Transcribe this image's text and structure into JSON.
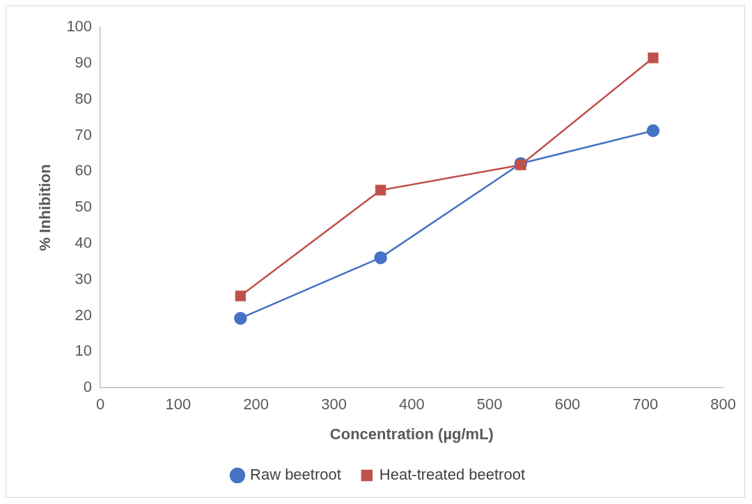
{
  "chart_data": {
    "type": "line",
    "xlabel": "Concentration (µg/mL)",
    "ylabel": "% Inhibition",
    "xlim": [
      0,
      800
    ],
    "xticks": [
      0,
      100,
      200,
      300,
      400,
      500,
      600,
      700,
      800
    ],
    "ylim": [
      0,
      100
    ],
    "yticks": [
      0,
      10,
      20,
      30,
      40,
      50,
      60,
      70,
      80,
      90,
      100
    ],
    "grid": false,
    "legend": "bottom",
    "series": [
      {
        "name": "Raw beetroot",
        "color": "#4472c4",
        "marker": "circle",
        "x": [
          180,
          360,
          540,
          710
        ],
        "values": [
          19.3,
          36.1,
          62.2,
          71.3
        ]
      },
      {
        "name": "Heat-treated beetroot",
        "color": "#c0504d",
        "marker": "square",
        "x": [
          180,
          360,
          540,
          710
        ],
        "values": [
          25.5,
          54.8,
          61.8,
          91.5
        ]
      }
    ]
  }
}
